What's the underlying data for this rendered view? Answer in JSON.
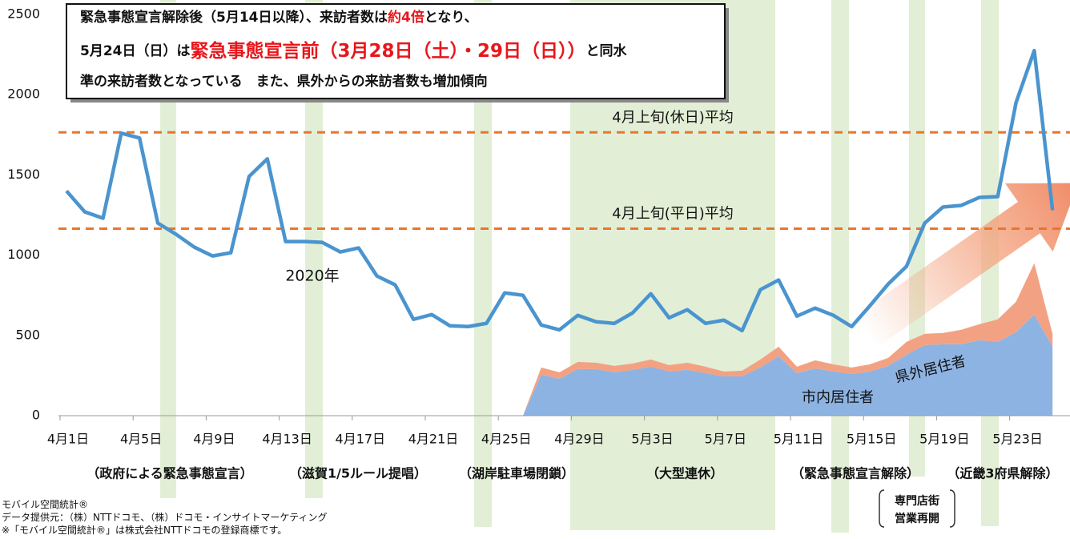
{
  "chart_data": {
    "type": "line",
    "categories": [
      "4月1日",
      null,
      null,
      null,
      "4月5日",
      null,
      null,
      null,
      "4月9日",
      null,
      null,
      null,
      "4月13日",
      null,
      null,
      null,
      "4月17日",
      null,
      null,
      null,
      "4月21日",
      null,
      null,
      null,
      "4月25日",
      null,
      null,
      null,
      "4月29日",
      null,
      null,
      null,
      "5月3日",
      null,
      null,
      null,
      "5月7日",
      null,
      null,
      null,
      "5月11日",
      null,
      null,
      null,
      "5月15日",
      null,
      null,
      null,
      "5月19日",
      null,
      null,
      null,
      "5月23日",
      null,
      null
    ],
    "ylim": [
      0,
      2500
    ],
    "yticks": [
      0,
      500,
      1000,
      1500,
      2000,
      2500
    ],
    "series": [
      {
        "name": "2020年",
        "color": "#4a94cf",
        "values": [
          1400,
          1270,
          1230,
          1760,
          1730,
          1200,
          1130,
          1050,
          995,
          1015,
          1490,
          1600,
          1085,
          1085,
          1080,
          1020,
          1045,
          870,
          815,
          600,
          630,
          560,
          555,
          575,
          765,
          750,
          565,
          535,
          625,
          585,
          575,
          640,
          760,
          610,
          660,
          575,
          595,
          530,
          785,
          845,
          620,
          670,
          625,
          555,
          685,
          820,
          930,
          1200,
          1300,
          1310,
          1360,
          1365,
          1950,
          2275,
          1280
        ]
      },
      {
        "name": "市内居住者",
        "type": "area",
        "color": "#8db3e2",
        "values": [
          null,
          null,
          null,
          null,
          null,
          null,
          null,
          null,
          null,
          null,
          null,
          null,
          null,
          null,
          null,
          null,
          null,
          null,
          null,
          null,
          null,
          null,
          null,
          null,
          null,
          0,
          255,
          230,
          290,
          290,
          270,
          285,
          305,
          275,
          285,
          265,
          245,
          245,
          300,
          370,
          265,
          295,
          275,
          260,
          275,
          310,
          380,
          440,
          445,
          445,
          470,
          460,
          520,
          630,
          430
        ]
      },
      {
        "name": "県外居住者",
        "type": "area",
        "color": "#f2a283",
        "values": [
          null,
          null,
          null,
          null,
          null,
          null,
          null,
          null,
          null,
          null,
          null,
          null,
          null,
          null,
          null,
          null,
          null,
          null,
          null,
          null,
          null,
          null,
          null,
          null,
          null,
          0,
          45,
          40,
          45,
          40,
          40,
          40,
          45,
          40,
          45,
          40,
          30,
          35,
          50,
          60,
          40,
          50,
          45,
          40,
          45,
          50,
          80,
          70,
          70,
          90,
          100,
          140,
          190,
          320,
          80
        ]
      }
    ],
    "reference_lines": [
      {
        "label": "4月上旬(休日)平均",
        "value": 1765,
        "color": "#e8762d"
      },
      {
        "label": "4月上旬(平日)平均",
        "value": 1165,
        "color": "#e8762d"
      }
    ],
    "events": [
      "（政府による緊急事態宣言）",
      "（滋賀1/5ルール提唱）",
      "（湖岸駐車場閉鎖）",
      "（大型連休）",
      "（緊急事態宣言解除）",
      "（近畿3府県解除）"
    ],
    "event_note": [
      "専門店街",
      "営業再開"
    ],
    "callout": [
      [
        {
          "text": "緊急事態宣言解除後（5月14日以降）、来訪者数は",
          "red": false,
          "large": false
        },
        {
          "text": "約4倍",
          "red": true,
          "large": false
        },
        {
          "text": "となり、",
          "red": false,
          "large": false
        }
      ],
      [
        {
          "text": "5月24日（日）は",
          "red": false,
          "large": false
        },
        {
          "text": "緊急事態宣言前（3月28日（土）・29日（日））",
          "red": true,
          "large": true
        },
        {
          "text": "と同水",
          "red": false,
          "large": false
        }
      ],
      [
        {
          "text": "準の来訪者数となっている　また、県外からの来訪者数も増加傾向",
          "red": false,
          "large": false
        }
      ]
    ],
    "source": [
      "モバイル空間統計®",
      "データ提供元：（株）NTTドコモ、（株）ドコモ・インサイトマーケティング",
      "※「モバイル空間統計®」は株式会社NTTドコモの登録商標です。"
    ]
  }
}
